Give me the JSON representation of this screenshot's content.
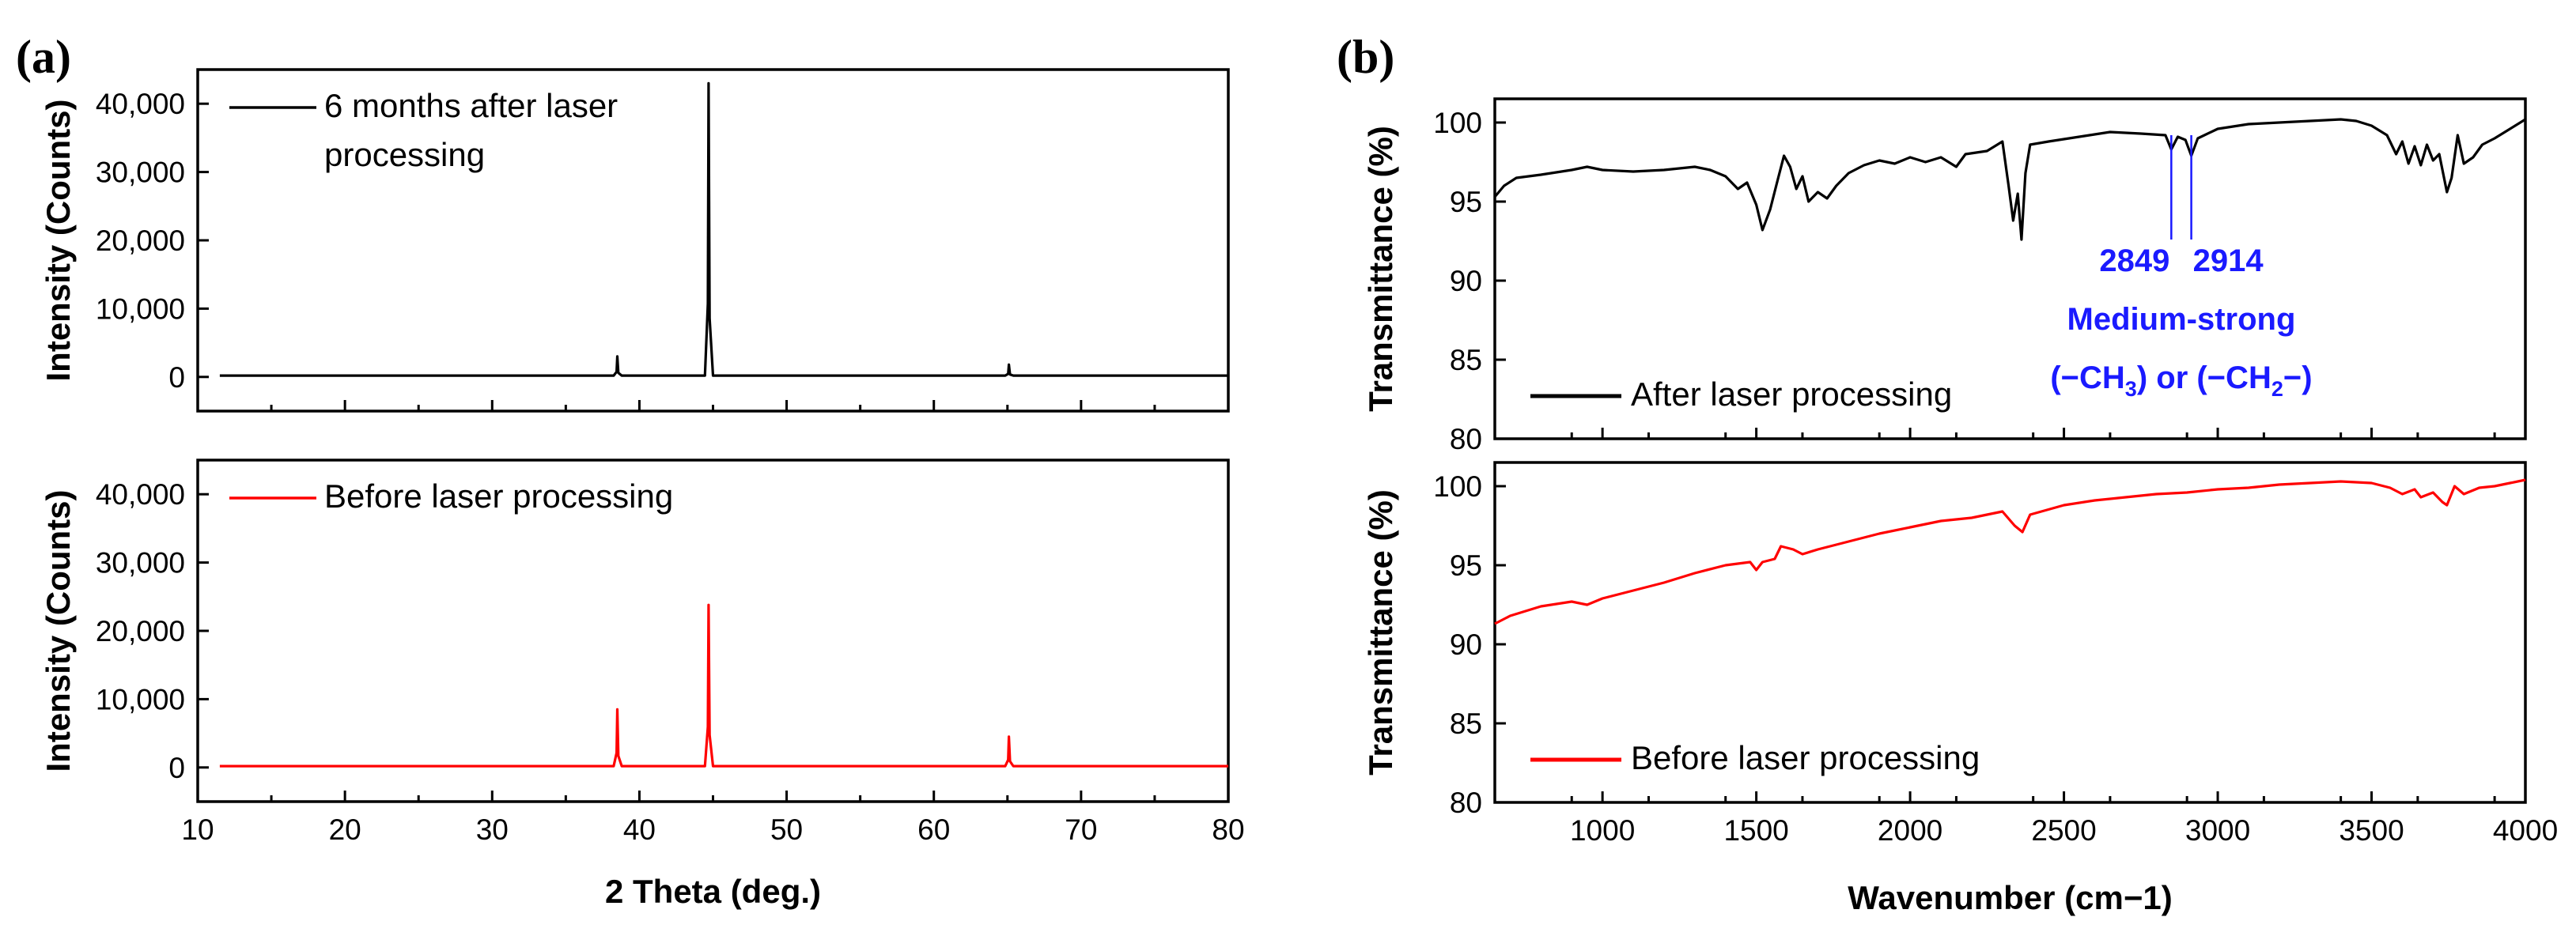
{
  "panels": {
    "a": {
      "label": "(a)"
    },
    "b": {
      "label": "(b)"
    }
  },
  "colors": {
    "after": "#000000",
    "before": "#ff0000",
    "annotation": "#1a1aff"
  },
  "chart_data": [
    {
      "id": "xrd-after",
      "type": "line",
      "panel": "(a)",
      "title": "",
      "xlabel": "2 Theta (deg.)",
      "ylabel": "Intensity (Counts)",
      "xlim": [
        10,
        80
      ],
      "ylim": [
        -5000,
        45000
      ],
      "xticks": [
        10,
        20,
        30,
        40,
        50,
        60,
        70,
        80
      ],
      "xtick_labels": [
        "10",
        "20",
        "30",
        "40",
        "50",
        "60",
        "70",
        "80"
      ],
      "yticks": [
        0,
        10000,
        20000,
        30000,
        40000
      ],
      "ytick_labels": [
        "0",
        "10,000",
        "20,000",
        "30,000",
        "40,000"
      ],
      "show_x_tick_labels": false,
      "legend": "6 months after laser processing",
      "legend_lines": [
        "6 months after laser",
        "processing"
      ],
      "legend_position": "top-left",
      "color": "#000000",
      "baseline": 200,
      "peaks": [
        {
          "x": 38.5,
          "y": 3000
        },
        {
          "x": 44.7,
          "y": 43000
        },
        {
          "x": 65.1,
          "y": 1800
        }
      ]
    },
    {
      "id": "xrd-before",
      "type": "line",
      "panel": "(a)",
      "title": "",
      "xlabel": "2 Theta (deg.)",
      "ylabel": "Intensity (Counts)",
      "xlim": [
        10,
        80
      ],
      "ylim": [
        -5000,
        45000
      ],
      "xticks": [
        10,
        20,
        30,
        40,
        50,
        60,
        70,
        80
      ],
      "xtick_labels": [
        "10",
        "20",
        "30",
        "40",
        "50",
        "60",
        "70",
        "80"
      ],
      "yticks": [
        0,
        10000,
        20000,
        30000,
        40000
      ],
      "ytick_labels": [
        "0",
        "10,000",
        "20,000",
        "30,000",
        "40,000"
      ],
      "show_x_tick_labels": true,
      "legend": "Before laser processing",
      "legend_lines": [
        "Before laser processing"
      ],
      "legend_position": "top-left",
      "color": "#ff0000",
      "baseline": 200,
      "peaks": [
        {
          "x": 38.5,
          "y": 8500
        },
        {
          "x": 44.7,
          "y": 23800
        },
        {
          "x": 65.1,
          "y": 4500
        }
      ]
    },
    {
      "id": "ftir-after",
      "type": "line",
      "panel": "(b)",
      "title": "",
      "xlabel": "Wavenumber (cm−1)",
      "ylabel": "Transmittance (%)",
      "xlim": [
        650,
        4000
      ],
      "ylim": [
        80,
        101.5
      ],
      "xticks": [
        1000,
        1500,
        2000,
        2500,
        3000,
        3500,
        4000
      ],
      "xtick_labels": [
        "1000",
        "1500",
        "2000",
        "2500",
        "3000",
        "3500",
        "4000"
      ],
      "yticks": [
        80,
        85,
        90,
        95,
        100
      ],
      "ytick_labels": [
        "80",
        "85",
        "90",
        "95",
        "100"
      ],
      "show_x_tick_labels": false,
      "legend": "After laser processing",
      "legend_position": "bottom-left",
      "color": "#000000",
      "points": [
        [
          650,
          95.3
        ],
        [
          680,
          96.0
        ],
        [
          720,
          96.5
        ],
        [
          800,
          96.7
        ],
        [
          900,
          97.0
        ],
        [
          950,
          97.2
        ],
        [
          1000,
          97.0
        ],
        [
          1100,
          96.9
        ],
        [
          1200,
          97.0
        ],
        [
          1300,
          97.2
        ],
        [
          1350,
          97.0
        ],
        [
          1400,
          96.6
        ],
        [
          1440,
          95.8
        ],
        [
          1470,
          96.2
        ],
        [
          1500,
          94.8
        ],
        [
          1520,
          93.2
        ],
        [
          1545,
          94.5
        ],
        [
          1570,
          96.4
        ],
        [
          1590,
          97.9
        ],
        [
          1610,
          97.2
        ],
        [
          1630,
          95.8
        ],
        [
          1650,
          96.6
        ],
        [
          1670,
          95.0
        ],
        [
          1700,
          95.6
        ],
        [
          1730,
          95.2
        ],
        [
          1760,
          96.0
        ],
        [
          1800,
          96.8
        ],
        [
          1850,
          97.3
        ],
        [
          1900,
          97.6
        ],
        [
          1950,
          97.4
        ],
        [
          2000,
          97.8
        ],
        [
          2050,
          97.5
        ],
        [
          2100,
          97.8
        ],
        [
          2150,
          97.2
        ],
        [
          2180,
          98.0
        ],
        [
          2250,
          98.2
        ],
        [
          2300,
          98.8
        ],
        [
          2320,
          96.0
        ],
        [
          2335,
          93.8
        ],
        [
          2350,
          95.5
        ],
        [
          2362,
          92.6
        ],
        [
          2375,
          96.8
        ],
        [
          2390,
          98.6
        ],
        [
          2450,
          98.8
        ],
        [
          2550,
          99.1
        ],
        [
          2650,
          99.4
        ],
        [
          2750,
          99.3
        ],
        [
          2830,
          99.2
        ],
        [
          2849,
          98.3
        ],
        [
          2870,
          99.1
        ],
        [
          2895,
          98.9
        ],
        [
          2914,
          97.9
        ],
        [
          2935,
          99.0
        ],
        [
          3000,
          99.6
        ],
        [
          3100,
          99.9
        ],
        [
          3200,
          100.0
        ],
        [
          3300,
          100.1
        ],
        [
          3400,
          100.2
        ],
        [
          3450,
          100.1
        ],
        [
          3500,
          99.8
        ],
        [
          3550,
          99.2
        ],
        [
          3580,
          98.0
        ],
        [
          3600,
          98.8
        ],
        [
          3620,
          97.4
        ],
        [
          3640,
          98.5
        ],
        [
          3660,
          97.3
        ],
        [
          3680,
          98.6
        ],
        [
          3700,
          97.6
        ],
        [
          3720,
          98.0
        ],
        [
          3745,
          95.6
        ],
        [
          3760,
          96.5
        ],
        [
          3780,
          99.2
        ],
        [
          3800,
          97.4
        ],
        [
          3830,
          97.8
        ],
        [
          3860,
          98.6
        ],
        [
          3900,
          99.0
        ],
        [
          3950,
          99.6
        ],
        [
          4000,
          100.2
        ]
      ],
      "annotations": {
        "marker_positions": [
          2849,
          2914
        ],
        "wavenumbers": [
          "2849",
          "2914"
        ],
        "line1": "Medium-strong",
        "group1_prefix": "(−CH",
        "group1_sub": "3",
        "middle": ") or (−CH",
        "group2_sub": "2",
        "group2_suffix": "−)"
      }
    },
    {
      "id": "ftir-before",
      "type": "line",
      "panel": "(b)",
      "title": "",
      "xlabel": "Wavenumber (cm−1)",
      "ylabel": "Transmittance (%)",
      "xlim": [
        650,
        4000
      ],
      "ylim": [
        80,
        101.5
      ],
      "xticks": [
        1000,
        1500,
        2000,
        2500,
        3000,
        3500,
        4000
      ],
      "xtick_labels": [
        "1000",
        "1500",
        "2000",
        "2500",
        "3000",
        "3500",
        "4000"
      ],
      "yticks": [
        80,
        85,
        90,
        95,
        100
      ],
      "ytick_labels": [
        "80",
        "85",
        "90",
        "95",
        "100"
      ],
      "show_x_tick_labels": true,
      "legend": "Before laser processing",
      "legend_position": "bottom-left",
      "color": "#ff0000",
      "points": [
        [
          650,
          91.3
        ],
        [
          700,
          91.8
        ],
        [
          800,
          92.4
        ],
        [
          900,
          92.7
        ],
        [
          950,
          92.5
        ],
        [
          1000,
          92.9
        ],
        [
          1100,
          93.4
        ],
        [
          1200,
          93.9
        ],
        [
          1300,
          94.5
        ],
        [
          1400,
          95.0
        ],
        [
          1480,
          95.2
        ],
        [
          1500,
          94.7
        ],
        [
          1520,
          95.2
        ],
        [
          1560,
          95.4
        ],
        [
          1580,
          96.2
        ],
        [
          1620,
          96.0
        ],
        [
          1650,
          95.7
        ],
        [
          1700,
          96.0
        ],
        [
          1800,
          96.5
        ],
        [
          1900,
          97.0
        ],
        [
          2000,
          97.4
        ],
        [
          2100,
          97.8
        ],
        [
          2200,
          98.0
        ],
        [
          2300,
          98.4
        ],
        [
          2340,
          97.5
        ],
        [
          2365,
          97.1
        ],
        [
          2390,
          98.2
        ],
        [
          2500,
          98.8
        ],
        [
          2600,
          99.1
        ],
        [
          2700,
          99.3
        ],
        [
          2800,
          99.5
        ],
        [
          2900,
          99.6
        ],
        [
          3000,
          99.8
        ],
        [
          3100,
          99.9
        ],
        [
          3200,
          100.1
        ],
        [
          3300,
          100.2
        ],
        [
          3400,
          100.3
        ],
        [
          3500,
          100.2
        ],
        [
          3560,
          99.9
        ],
        [
          3600,
          99.5
        ],
        [
          3640,
          99.8
        ],
        [
          3660,
          99.3
        ],
        [
          3700,
          99.6
        ],
        [
          3730,
          99.0
        ],
        [
          3745,
          98.8
        ],
        [
          3770,
          100.0
        ],
        [
          3800,
          99.5
        ],
        [
          3850,
          99.9
        ],
        [
          3900,
          100.0
        ],
        [
          3950,
          100.2
        ],
        [
          4000,
          100.4
        ]
      ]
    }
  ]
}
